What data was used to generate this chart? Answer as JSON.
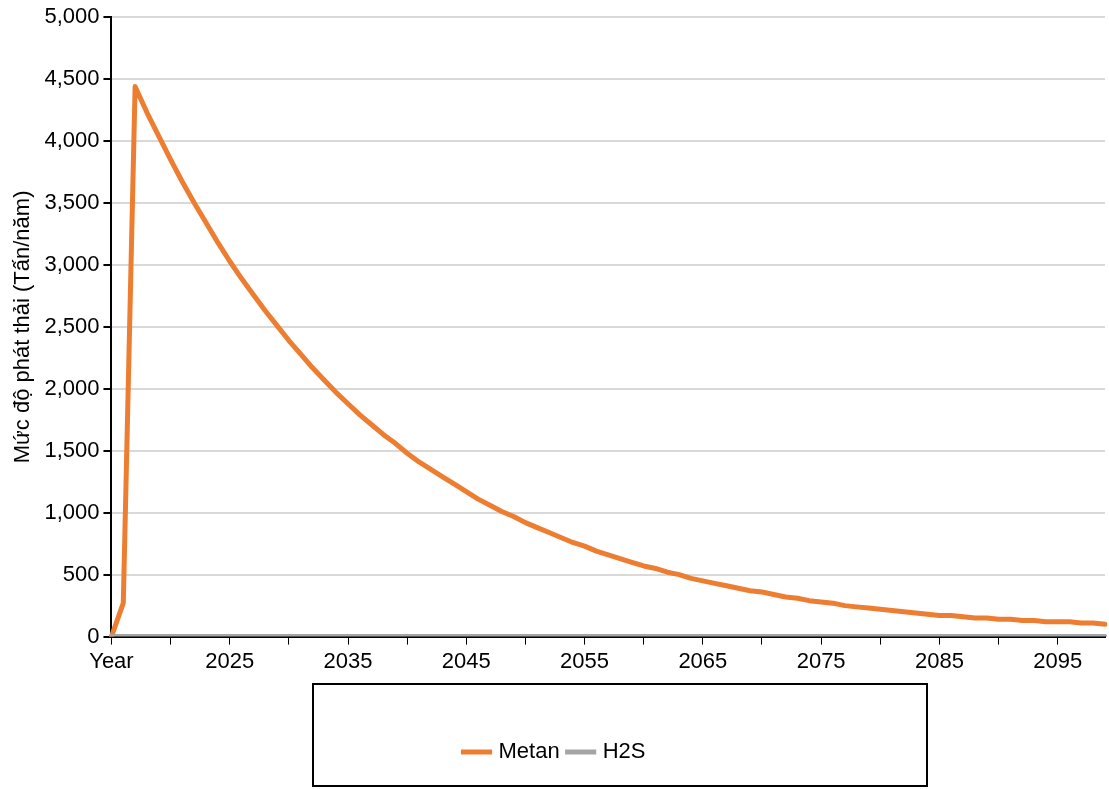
{
  "chart_data": {
    "type": "line",
    "ylabel": "Mức độ phát thải (Tấn/năm)",
    "categories": [
      "Year",
      null,
      null,
      null,
      null,
      null,
      null,
      null,
      null,
      null,
      "2025",
      null,
      null,
      null,
      null,
      null,
      null,
      null,
      null,
      null,
      "2035",
      null,
      null,
      null,
      null,
      null,
      null,
      null,
      null,
      null,
      "2045",
      null,
      null,
      null,
      null,
      null,
      null,
      null,
      null,
      null,
      "2055",
      null,
      null,
      null,
      null,
      null,
      null,
      null,
      null,
      null,
      "2065",
      null,
      null,
      null,
      null,
      null,
      null,
      null,
      null,
      null,
      "2075",
      null,
      null,
      null,
      null,
      null,
      null,
      null,
      null,
      null,
      "2085",
      null,
      null,
      null,
      null,
      null,
      null,
      null,
      null,
      null,
      "2095",
      null,
      null,
      null,
      null
    ],
    "series": [
      {
        "name": "Metan",
        "color": "#ed7d31",
        "values": [
          0,
          270,
          4440,
          4230,
          4040,
          3850,
          3670,
          3500,
          3340,
          3180,
          3030,
          2890,
          2760,
          2630,
          2510,
          2390,
          2280,
          2170,
          2070,
          1970,
          1880,
          1790,
          1710,
          1630,
          1560,
          1480,
          1410,
          1350,
          1290,
          1230,
          1170,
          1110,
          1060,
          1010,
          970,
          920,
          880,
          840,
          800,
          760,
          730,
          690,
          660,
          630,
          600,
          570,
          550,
          520,
          500,
          470,
          450,
          430,
          410,
          390,
          370,
          360,
          340,
          320,
          310,
          290,
          280,
          270,
          250,
          240,
          230,
          220,
          210,
          200,
          190,
          180,
          170,
          170,
          160,
          150,
          150,
          140,
          140,
          130,
          130,
          120,
          120,
          120,
          110,
          110,
          100
        ]
      },
      {
        "name": "H2S",
        "color": "#a5a5a5",
        "values": [
          0,
          0,
          0,
          0,
          0,
          0,
          0,
          0,
          0,
          0,
          0,
          0,
          0,
          0,
          0,
          0,
          0,
          0,
          0,
          0,
          0,
          0,
          0,
          0,
          0,
          0,
          0,
          0,
          0,
          0,
          0,
          0,
          0,
          0,
          0,
          0,
          0,
          0,
          0,
          0,
          0,
          0,
          0,
          0,
          0,
          0,
          0,
          0,
          0,
          0,
          0,
          0,
          0,
          0,
          0,
          0,
          0,
          0,
          0,
          0,
          0,
          0,
          0,
          0,
          0,
          0,
          0,
          0,
          0,
          0,
          0,
          0,
          0,
          0,
          0,
          0,
          0,
          0,
          0,
          0,
          0,
          0,
          0,
          0,
          0
        ]
      }
    ],
    "ylim": [
      0,
      5000
    ],
    "yticks": [
      0,
      500,
      {
        "value": 1000,
        "label": "1,000"
      },
      {
        "value": 1500,
        "label": "1,500"
      },
      {
        "value": 2000,
        "label": "2,000"
      },
      {
        "value": 2500,
        "label": "2,500"
      },
      {
        "value": 3000,
        "label": "3,000"
      },
      {
        "value": 3500,
        "label": "3,500"
      },
      {
        "value": 4000,
        "label": "4,000"
      },
      {
        "value": 4500,
        "label": "4,500"
      },
      {
        "value": 5000,
        "label": "5,000"
      }
    ],
    "grid": "y",
    "legend": "bottom",
    "marker": "none",
    "line_style": "solid"
  }
}
